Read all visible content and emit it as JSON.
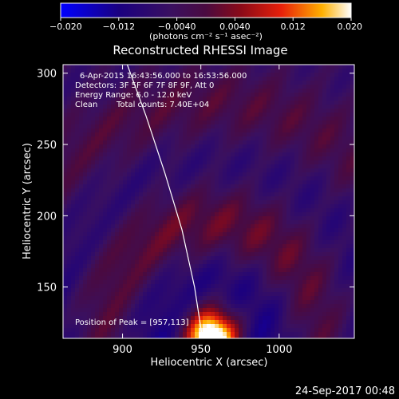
{
  "colorbar": {
    "ticks": [
      "−0.020",
      "−0.012",
      "−0.0040",
      "0.0040",
      "0.012",
      "0.020"
    ],
    "unit_label": "(photons cm⁻² s⁻¹ asec⁻²)",
    "range": [
      -0.02,
      0.02
    ]
  },
  "footer": {
    "timestamp": "24-Sep-2017 00:48"
  },
  "chart_data": {
    "type": "heatmap",
    "title": "Reconstructed RHESSI Image",
    "xlabel": "Heliocentric X (arcsec)",
    "ylabel": "Heliocentric Y (arcsec)",
    "xlim": [
      862,
      1048
    ],
    "ylim": [
      114,
      306
    ],
    "xticks": [
      900,
      950,
      1000
    ],
    "yticks": [
      150,
      200,
      250,
      300
    ],
    "annotations": [
      "6-Apr-2015 16:43:56.000 to 16:53:56.000",
      "Detectors: 3F 5F 6F 7F 8F 9F, Att 0",
      "Energy Range: 6.0 - 12.0 keV",
      "Clean",
      "Total counts: 7.40E+04"
    ],
    "peak_label": "Position of Peak = [957,113]",
    "peak": {
      "x": 957,
      "y": 113
    },
    "limb_curve": {
      "x": [
        903,
        915,
        927,
        938,
        946,
        951
      ],
      "y": [
        306,
        270,
        230,
        190,
        150,
        114
      ]
    }
  },
  "colors": {
    "background": "#000000",
    "foreground": "#ffffff"
  }
}
